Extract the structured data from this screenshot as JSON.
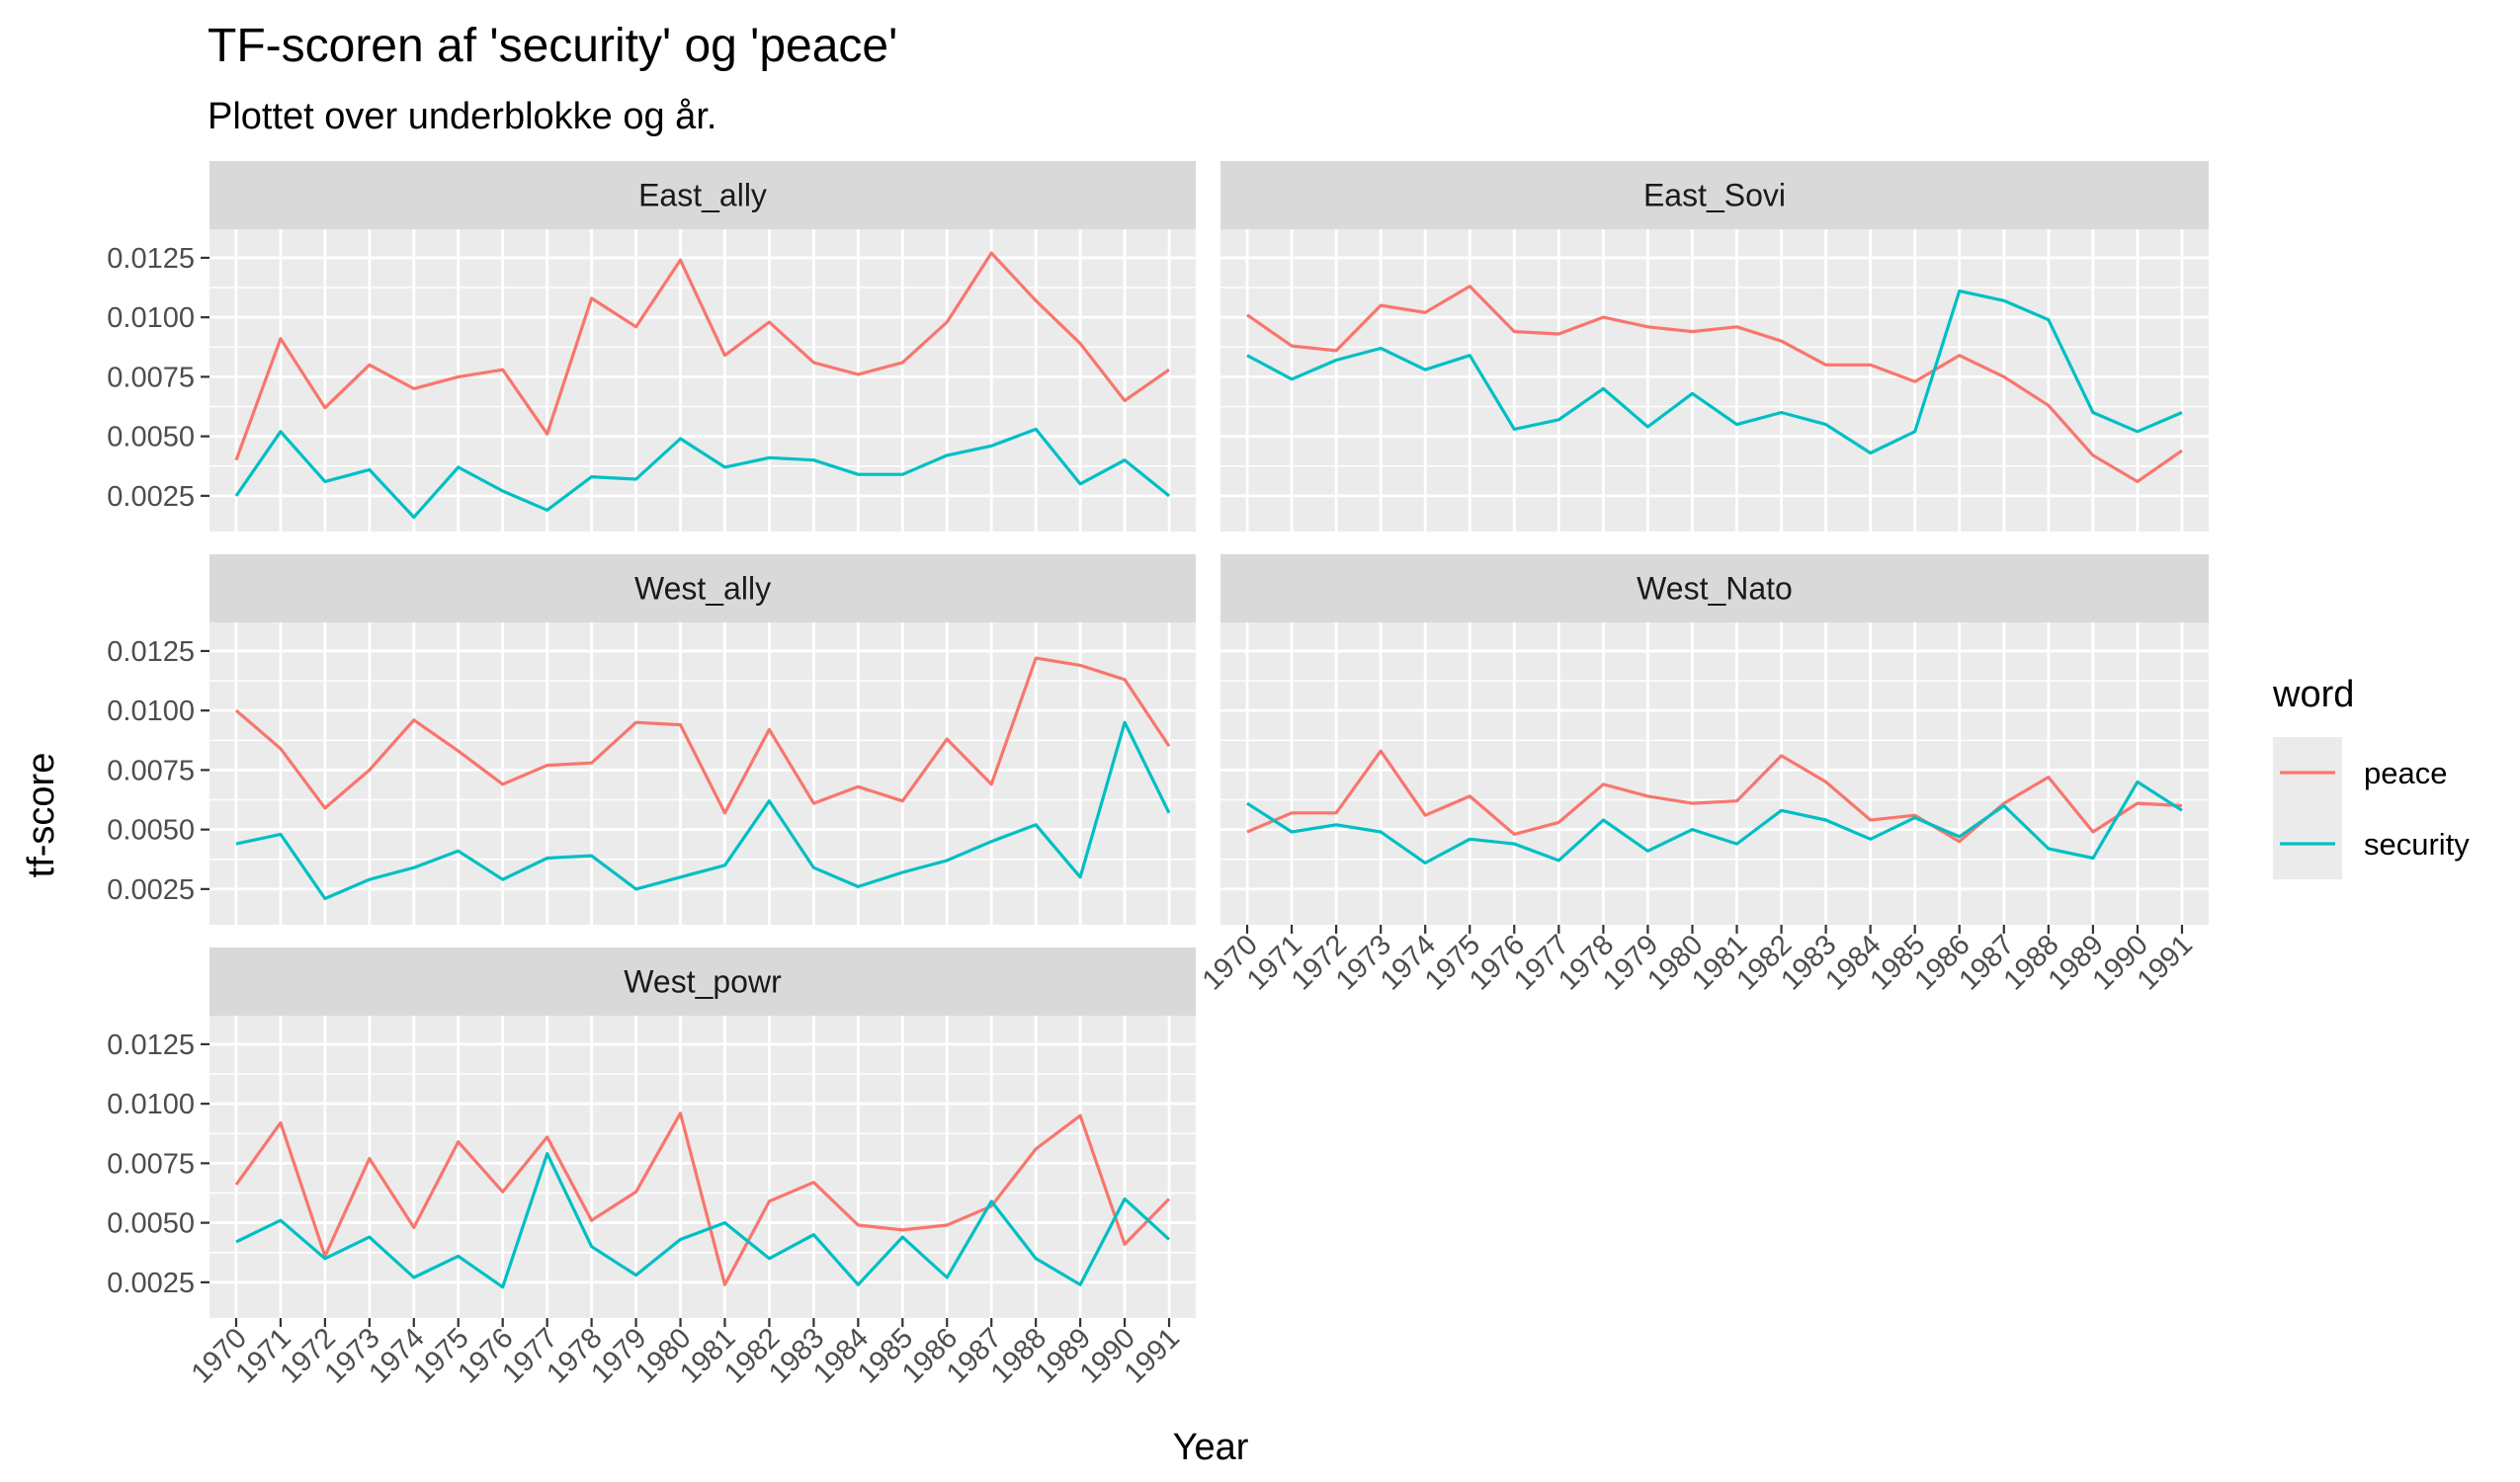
{
  "chart_data": {
    "type": "line",
    "title": "TF-scoren af 'security' og 'peace'",
    "subtitle": "Plottet over underblokke og år.",
    "xlabel": "Year",
    "ylabel": "tf-score",
    "ylim": [
      0.001,
      0.0137
    ],
    "y_ticks": [
      "0.0025",
      "0.0050",
      "0.0075",
      "0.0100",
      "0.0125"
    ],
    "y_tick_values": [
      0.0025,
      0.005,
      0.0075,
      0.01,
      0.0125
    ],
    "x": [
      "1970",
      "1971",
      "1972",
      "1973",
      "1974",
      "1975",
      "1976",
      "1977",
      "1978",
      "1979",
      "1980",
      "1981",
      "1982",
      "1983",
      "1984",
      "1985",
      "1986",
      "1987",
      "1988",
      "1989",
      "1990",
      "1991"
    ],
    "grid": true,
    "legend": {
      "title": "word",
      "position": "right",
      "entries": [
        {
          "name": "peace",
          "color": "#F8766D"
        },
        {
          "name": "security",
          "color": "#00BFC4"
        }
      ]
    },
    "panels": [
      {
        "name": "East_ally",
        "series": [
          {
            "name": "peace",
            "values": [
              0.004,
              0.0091,
              0.0062,
              0.008,
              0.007,
              0.0075,
              0.0078,
              0.0051,
              0.0108,
              0.0096,
              0.0124,
              0.0084,
              0.0098,
              0.0081,
              0.0076,
              0.0081,
              0.0098,
              0.0127,
              0.0107,
              0.0089,
              0.0065,
              0.0078
            ]
          },
          {
            "name": "security",
            "values": [
              0.0025,
              0.0052,
              0.0031,
              0.0036,
              0.0016,
              0.0037,
              0.0027,
              0.0019,
              0.0033,
              0.0032,
              0.0049,
              0.0037,
              0.0041,
              0.004,
              0.0034,
              0.0034,
              0.0042,
              0.0046,
              0.0053,
              0.003,
              0.004,
              0.0025
            ]
          }
        ]
      },
      {
        "name": "East_Sovi",
        "series": [
          {
            "name": "peace",
            "values": [
              0.0101,
              0.0088,
              0.0086,
              0.0105,
              0.0102,
              0.0113,
              0.0094,
              0.0093,
              0.01,
              0.0096,
              0.0094,
              0.0096,
              0.009,
              0.008,
              0.008,
              0.0073,
              0.0084,
              0.0075,
              0.0063,
              0.0042,
              0.0031,
              0.0044
            ]
          },
          {
            "name": "security",
            "values": [
              0.0084,
              0.0074,
              0.0082,
              0.0087,
              0.0078,
              0.0084,
              0.0053,
              0.0057,
              0.007,
              0.0054,
              0.0068,
              0.0055,
              0.006,
              0.0055,
              0.0043,
              0.0052,
              0.0111,
              0.0107,
              0.0099,
              0.006,
              0.0052,
              0.006
            ]
          }
        ]
      },
      {
        "name": "West_ally",
        "series": [
          {
            "name": "peace",
            "values": [
              0.01,
              0.0084,
              0.0059,
              0.0075,
              0.0096,
              0.0083,
              0.0069,
              0.0077,
              0.0078,
              0.0095,
              0.0094,
              0.0057,
              0.0092,
              0.0061,
              0.0068,
              0.0062,
              0.0088,
              0.0069,
              0.0122,
              0.0119,
              0.0113,
              0.0085
            ]
          },
          {
            "name": "security",
            "values": [
              0.0044,
              0.0048,
              0.0021,
              0.0029,
              0.0034,
              0.0041,
              0.0029,
              0.0038,
              0.0039,
              0.0025,
              0.003,
              0.0035,
              0.0062,
              0.0034,
              0.0026,
              0.0032,
              0.0037,
              0.0045,
              0.0052,
              0.003,
              0.0095,
              0.0057
            ]
          }
        ]
      },
      {
        "name": "West_Nato",
        "series": [
          {
            "name": "peace",
            "values": [
              0.0049,
              0.0057,
              0.0057,
              0.0083,
              0.0056,
              0.0064,
              0.0048,
              0.0053,
              0.0069,
              0.0064,
              0.0061,
              0.0062,
              0.0081,
              0.007,
              0.0054,
              0.0056,
              0.0045,
              0.0061,
              0.0072,
              0.0049,
              0.0061,
              0.006
            ]
          },
          {
            "name": "security",
            "values": [
              0.0061,
              0.0049,
              0.0052,
              0.0049,
              0.0036,
              0.0046,
              0.0044,
              0.0037,
              0.0054,
              0.0041,
              0.005,
              0.0044,
              0.0058,
              0.0054,
              0.0046,
              0.0055,
              0.0047,
              0.006,
              0.0042,
              0.0038,
              0.007,
              0.0058
            ]
          }
        ]
      },
      {
        "name": "West_powr",
        "series": [
          {
            "name": "peace",
            "values": [
              0.0066,
              0.0092,
              0.0036,
              0.0077,
              0.0048,
              0.0084,
              0.0063,
              0.0086,
              0.0051,
              0.0063,
              0.0096,
              0.0024,
              0.0059,
              0.0067,
              0.0049,
              0.0047,
              0.0049,
              0.0057,
              0.0081,
              0.0095,
              0.0041,
              0.006
            ]
          },
          {
            "name": "security",
            "values": [
              0.0042,
              0.0051,
              0.0035,
              0.0044,
              0.0027,
              0.0036,
              0.0023,
              0.0079,
              0.004,
              0.0028,
              0.0043,
              0.005,
              0.0035,
              0.0045,
              0.0024,
              0.0044,
              0.0027,
              0.0059,
              0.0035,
              0.0024,
              0.006,
              0.0043
            ]
          }
        ]
      }
    ]
  }
}
